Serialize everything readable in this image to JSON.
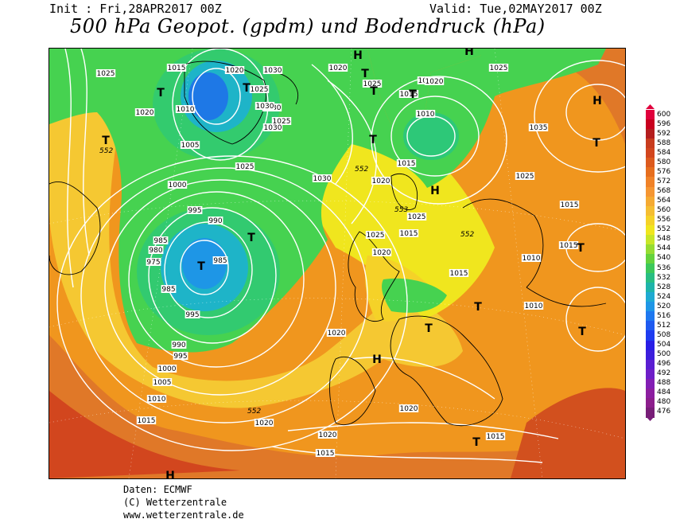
{
  "header": {
    "init": "Init : Fri,28APR2017 00Z",
    "valid": "Valid: Tue,02MAY2017 00Z",
    "title": "500 hPa Geopot. (gpdm) und Bodendruck (hPa)"
  },
  "footer": {
    "line1": "Daten: ECMWF",
    "line2": "(C) Wetterzentrale",
    "line3": "www.wetterzentrale.de"
  },
  "legend": {
    "labels": [
      "600",
      "596",
      "592",
      "588",
      "584",
      "580",
      "576",
      "572",
      "568",
      "564",
      "560",
      "556",
      "552",
      "548",
      "544",
      "540",
      "536",
      "532",
      "528",
      "524",
      "520",
      "516",
      "512",
      "508",
      "504",
      "500",
      "496",
      "492",
      "488",
      "484",
      "480",
      "476"
    ],
    "colors": [
      "#e0003c",
      "#c8001e",
      "#b41e1e",
      "#c83c1e",
      "#d2461e",
      "#dc5a1e",
      "#e66e1e",
      "#f08228",
      "#f59632",
      "#f5aa32",
      "#f5be32",
      "#f5d228",
      "#f0e61e",
      "#c8e628",
      "#96dc32",
      "#64d23c",
      "#3cc85a",
      "#28be82",
      "#1eb4aa",
      "#1eaad2",
      "#1e96e6",
      "#1e78f0",
      "#1e5af0",
      "#1e3cf0",
      "#281ee6",
      "#3c1edc",
      "#5a1ed2",
      "#6e1ec8",
      "#821eb4",
      "#8c1ea0",
      "#8c1e8c",
      "#781e78"
    ]
  },
  "map": {
    "colors": {
      "orange": "#f0961e",
      "orange_dark": "#dc6e1e",
      "red": "#d2461e",
      "yellow": "#f0e61e",
      "yellow_orange": "#f5c832",
      "green": "#46d250",
      "green_teal": "#2dc878",
      "cyan": "#1eb4c8",
      "blue": "#1e78e6"
    },
    "pressure_labels": [
      {
        "text": "1025"
      },
      {
        "text": "1015"
      },
      {
        "text": "1020"
      },
      {
        "text": "1025"
      },
      {
        "text": "1030"
      },
      {
        "text": "1020"
      },
      {
        "text": "1030"
      },
      {
        "text": "1025"
      },
      {
        "text": "1020"
      },
      {
        "text": "1025"
      },
      {
        "text": "1010"
      },
      {
        "text": "1030"
      },
      {
        "text": "1025"
      },
      {
        "text": "1015"
      },
      {
        "text": "1020"
      },
      {
        "text": "1025"
      },
      {
        "text": "1010"
      },
      {
        "text": "1035"
      },
      {
        "text": "1005"
      },
      {
        "text": "1025"
      },
      {
        "text": "1030"
      },
      {
        "text": "1015"
      },
      {
        "text": "1030"
      },
      {
        "text": "1025"
      },
      {
        "text": "1000"
      },
      {
        "text": "1020"
      },
      {
        "text": "995"
      },
      {
        "text": "990"
      },
      {
        "text": "1025"
      },
      {
        "text": "1015"
      },
      {
        "text": "1015"
      },
      {
        "text": "985"
      },
      {
        "text": "1025"
      },
      {
        "text": "1010"
      },
      {
        "text": "980"
      },
      {
        "text": "985"
      },
      {
        "text": "1020"
      },
      {
        "text": "975"
      },
      {
        "text": "1015"
      },
      {
        "text": "1015"
      },
      {
        "text": "985"
      },
      {
        "text": "1010"
      },
      {
        "text": "995"
      },
      {
        "text": "1020"
      },
      {
        "text": "990"
      },
      {
        "text": "995"
      },
      {
        "text": "1000"
      },
      {
        "text": "1005"
      },
      {
        "text": "1010"
      },
      {
        "text": "1015"
      },
      {
        "text": "1020"
      },
      {
        "text": "1020"
      },
      {
        "text": "1020"
      },
      {
        "text": "1015"
      },
      {
        "text": "1015"
      }
    ],
    "markers": [
      {
        "text": "H"
      },
      {
        "text": "H"
      },
      {
        "text": "T"
      },
      {
        "text": "T"
      },
      {
        "text": "T"
      },
      {
        "text": "T"
      },
      {
        "text": "T"
      },
      {
        "text": "T"
      },
      {
        "text": "H"
      },
      {
        "text": "T"
      },
      {
        "text": "T"
      },
      {
        "text": "H"
      },
      {
        "text": "T"
      },
      {
        "text": "H"
      },
      {
        "text": "T"
      },
      {
        "text": "T"
      },
      {
        "text": "T"
      },
      {
        "text": "H"
      },
      {
        "text": "T"
      },
      {
        "text": "T"
      },
      {
        "text": "T"
      },
      {
        "text": "H"
      }
    ],
    "height_labels": [
      {
        "text": "552"
      },
      {
        "text": "552"
      },
      {
        "text": "553"
      },
      {
        "text": "552"
      },
      {
        "text": "552"
      }
    ]
  }
}
